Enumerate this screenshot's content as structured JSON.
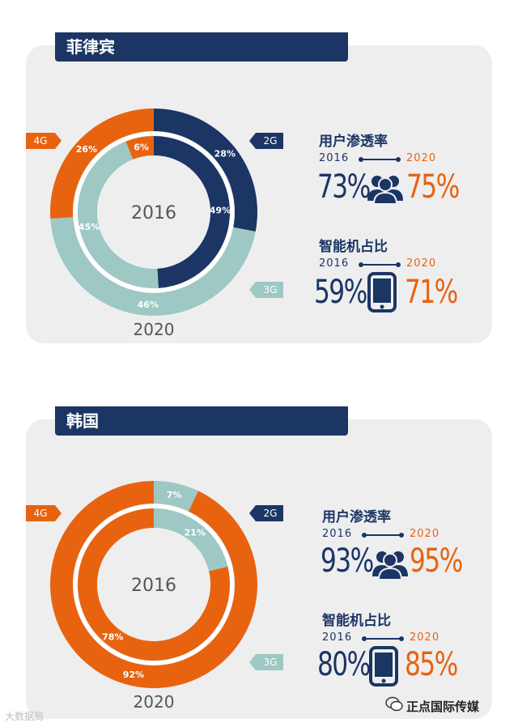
{
  "colors": {
    "g2": "#1b3564",
    "g3": "#9dc8c3",
    "g4": "#e8630f",
    "panel": "#eeeeef",
    "ring_gap": "#ffffff"
  },
  "sections": [
    {
      "country": "菲律宾",
      "center_label": "2016",
      "outer_label": "2020",
      "legend": {
        "g2": "2G",
        "g3": "3G",
        "g4": "4G"
      },
      "stat_user": {
        "title": "用户渗透率",
        "year_from": "2016",
        "year_to": "2020",
        "value_from": "73%",
        "value_to": "75%",
        "icon": "users-icon"
      },
      "stat_phone": {
        "title": "智能机占比",
        "year_from": "2016",
        "year_to": "2020",
        "value_from": "59%",
        "value_to": "71%",
        "icon": "smartphone-icon"
      }
    },
    {
      "country": "韩国",
      "center_label": "2016",
      "outer_label": "2020",
      "legend": {
        "g2": "2G",
        "g3": "3G",
        "g4": "4G"
      },
      "stat_user": {
        "title": "用户渗透率",
        "year_from": "2016",
        "year_to": "2020",
        "value_from": "93%",
        "value_to": "95%",
        "icon": "users-icon"
      },
      "stat_phone": {
        "title": "智能机占比",
        "year_from": "2016",
        "year_to": "2020",
        "value_from": "80%",
        "value_to": "85%",
        "icon": "smartphone-icon"
      }
    }
  ],
  "chart_data": [
    {
      "type": "pie",
      "title": "菲律宾",
      "rings": [
        {
          "name": "2016",
          "categories": [
            "2G",
            "3G",
            "4G"
          ],
          "values": [
            49,
            45,
            6
          ],
          "labels": [
            "49%",
            "45%",
            "6%"
          ]
        },
        {
          "name": "2020",
          "categories": [
            "2G",
            "3G",
            "4G"
          ],
          "values": [
            28,
            46,
            26
          ],
          "labels": [
            "28%",
            "46%",
            "26%"
          ]
        }
      ]
    },
    {
      "type": "pie",
      "title": "韩国",
      "rings": [
        {
          "name": "2016",
          "categories": [
            "2G",
            "3G",
            "4G"
          ],
          "values": [
            0,
            21,
            78
          ],
          "labels": [
            "0%",
            "21%",
            "78%"
          ]
        },
        {
          "name": "2020",
          "categories": [
            "2G",
            "3G",
            "4G"
          ],
          "values": [
            0,
            7,
            92
          ],
          "labels": [
            "0%",
            "7%",
            "92%"
          ]
        }
      ]
    }
  ],
  "watermark": {
    "left": "大数据局",
    "right": "正点国际传媒"
  }
}
